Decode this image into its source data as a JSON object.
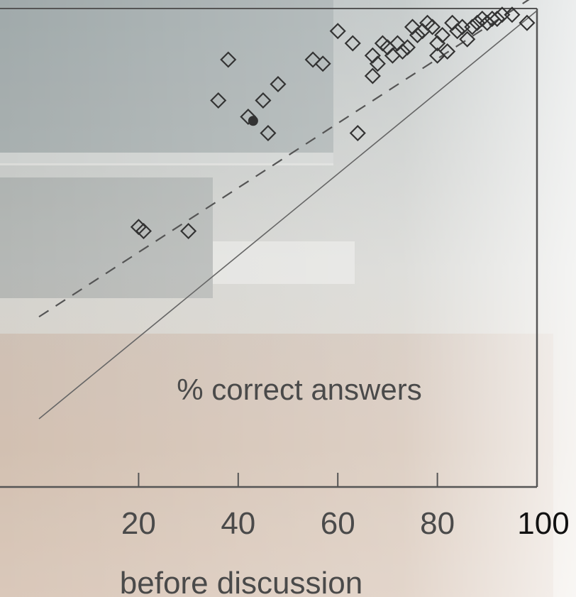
{
  "chart_data": {
    "type": "scatter",
    "xlabel": "before discussion",
    "annotation": "% correct answers",
    "xlim": [
      0,
      100
    ],
    "ylim": [
      0,
      100
    ],
    "x_ticks": [
      20,
      40,
      60,
      80,
      100
    ],
    "identity_line": true,
    "series": [
      {
        "marker": "open-diamond",
        "points": [
          [
            20,
            47
          ],
          [
            21,
            46
          ],
          [
            30,
            46
          ],
          [
            36,
            78
          ],
          [
            42,
            74
          ],
          [
            45,
            78
          ],
          [
            48,
            82
          ],
          [
            46,
            70
          ],
          [
            38,
            88
          ],
          [
            55,
            88
          ],
          [
            57,
            87
          ],
          [
            60,
            95
          ],
          [
            63,
            92
          ],
          [
            64,
            70
          ],
          [
            67,
            84
          ],
          [
            68,
            87
          ],
          [
            69,
            92
          ],
          [
            70,
            91
          ],
          [
            71,
            89
          ],
          [
            72,
            92
          ],
          [
            73,
            90
          ],
          [
            74,
            91
          ],
          [
            75,
            96
          ],
          [
            76,
            94
          ],
          [
            77,
            95
          ],
          [
            78,
            97
          ],
          [
            79,
            96
          ],
          [
            80,
            89
          ],
          [
            80,
            92
          ],
          [
            81,
            94
          ],
          [
            82,
            90
          ],
          [
            83,
            97
          ],
          [
            84,
            95
          ],
          [
            85,
            96
          ],
          [
            86,
            93
          ],
          [
            87,
            96
          ],
          [
            88,
            97
          ],
          [
            89,
            98
          ],
          [
            90,
            97
          ],
          [
            91,
            98
          ],
          [
            92,
            98
          ],
          [
            93,
            99
          ],
          [
            95,
            99
          ],
          [
            98,
            97
          ],
          [
            67,
            89
          ]
        ]
      },
      {
        "marker": "filled-circle",
        "points": [
          [
            43,
            73
          ]
        ]
      }
    ],
    "trend_line": {
      "style": "dashed",
      "from": [
        0,
        25
      ],
      "to": [
        100,
        104
      ]
    },
    "colors": {
      "frame": "#555555",
      "marker": "#333333",
      "identity": "#666666",
      "trend": "#555555",
      "text": "#4a4a4a"
    }
  }
}
